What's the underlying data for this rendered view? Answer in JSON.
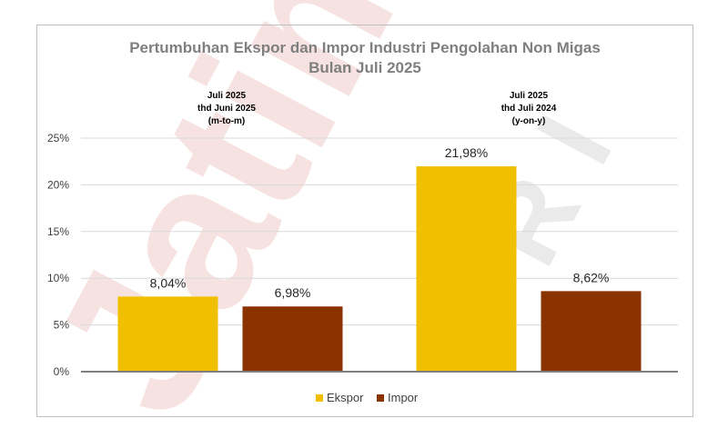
{
  "chart_data": {
    "type": "bar",
    "title_lines": [
      "Pertumbuhan Ekspor dan Impor Industri Pengolahan Non Migas",
      "Bulan Juli 2025"
    ],
    "groups": [
      {
        "label_lines": [
          "Juli 2025",
          "thd Juni 2025",
          "(m-to-m)"
        ]
      },
      {
        "label_lines": [
          "Juli 2025",
          "thd Juli 2024",
          "(y-on-y)"
        ]
      }
    ],
    "series": [
      {
        "name": "Ekspor",
        "color": "#f0c000",
        "values": [
          8.04,
          21.98
        ],
        "labels": [
          "8,04%",
          "21,98%"
        ]
      },
      {
        "name": "Impor",
        "color": "#8b3300",
        "values": [
          6.98,
          8.62
        ],
        "labels": [
          "6,98%",
          "8,62%"
        ]
      }
    ],
    "ylim": [
      0,
      25
    ],
    "yticks": [
      0,
      5,
      10,
      15,
      20,
      25
    ],
    "ytick_labels": [
      "0%",
      "5%",
      "10%",
      "15%",
      "20%",
      "25%"
    ],
    "grid": true,
    "legend_position": "bottom"
  },
  "watermark": {
    "text_left": "Jatim",
    "text_right": "RI",
    "color": "#c0392b"
  }
}
